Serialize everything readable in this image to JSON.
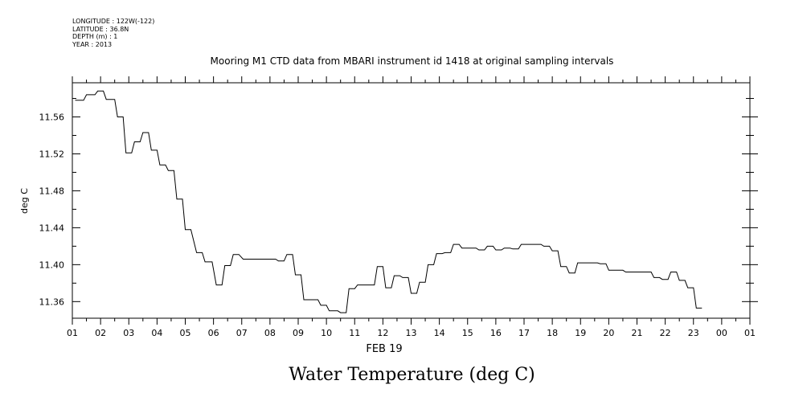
{
  "header": {
    "longitude": "LONGITUDE : 122W(-122)",
    "latitude": "LATITUDE : 36.8N",
    "depth": "DEPTH (m) : 1",
    "year": "YEAR : 2013"
  },
  "chart_data": {
    "type": "line",
    "title": "Water Temperature (deg C)",
    "subtitle": "Mooring M1 CTD data from MBARI instrument id 1418 at original sampling intervals",
    "ylabel": "deg C",
    "xlabel": "FEB 19",
    "ylim": [
      11.342,
      11.597
    ],
    "xlim": [
      1,
      25
    ],
    "y_ticks": [
      "11.56",
      "11.52",
      "11.48",
      "11.44",
      "11.40",
      "11.36"
    ],
    "y_tick_values": [
      11.56,
      11.52,
      11.48,
      11.44,
      11.4,
      11.36
    ],
    "x_ticks": [
      "01",
      "02",
      "03",
      "04",
      "05",
      "06",
      "07",
      "08",
      "09",
      "10",
      "11",
      "12",
      "13",
      "14",
      "15",
      "16",
      "17",
      "18",
      "19",
      "20",
      "21",
      "22",
      "23",
      "00",
      "01"
    ],
    "grid": false,
    "series": [
      {
        "values": [
          [
            1.1,
            11.578
          ],
          [
            1.4,
            11.578
          ],
          [
            1.5,
            11.584
          ],
          [
            1.8,
            11.584
          ],
          [
            1.9,
            11.588
          ],
          [
            2.1,
            11.588
          ],
          [
            2.2,
            11.579
          ],
          [
            2.5,
            11.579
          ],
          [
            2.6,
            11.56
          ],
          [
            2.8,
            11.56
          ],
          [
            2.9,
            11.521
          ],
          [
            3.1,
            11.521
          ],
          [
            3.2,
            11.533
          ],
          [
            3.4,
            11.533
          ],
          [
            3.5,
            11.543
          ],
          [
            3.7,
            11.543
          ],
          [
            3.8,
            11.524
          ],
          [
            4.0,
            11.524
          ],
          [
            4.1,
            11.508
          ],
          [
            4.3,
            11.508
          ],
          [
            4.4,
            11.502
          ],
          [
            4.6,
            11.502
          ],
          [
            4.7,
            11.471
          ],
          [
            4.9,
            11.471
          ],
          [
            5.0,
            11.438
          ],
          [
            5.2,
            11.438
          ],
          [
            5.4,
            11.413
          ],
          [
            5.6,
            11.413
          ],
          [
            5.7,
            11.403
          ],
          [
            5.95,
            11.403
          ],
          [
            6.1,
            11.378
          ],
          [
            6.3,
            11.378
          ],
          [
            6.4,
            11.399
          ],
          [
            6.6,
            11.399
          ],
          [
            6.7,
            11.411
          ],
          [
            6.9,
            11.411
          ],
          [
            7.05,
            11.406
          ],
          [
            8.2,
            11.406
          ],
          [
            8.3,
            11.404
          ],
          [
            8.5,
            11.404
          ],
          [
            8.6,
            11.411
          ],
          [
            8.8,
            11.411
          ],
          [
            8.9,
            11.389
          ],
          [
            9.1,
            11.389
          ],
          [
            9.2,
            11.362
          ],
          [
            9.7,
            11.362
          ],
          [
            9.8,
            11.356
          ],
          [
            10.0,
            11.356
          ],
          [
            10.1,
            11.35
          ],
          [
            10.4,
            11.35
          ],
          [
            10.5,
            11.348
          ],
          [
            10.7,
            11.348
          ],
          [
            10.8,
            11.374
          ],
          [
            11.0,
            11.374
          ],
          [
            11.1,
            11.378
          ],
          [
            11.7,
            11.378
          ],
          [
            11.8,
            11.398
          ],
          [
            12.0,
            11.398
          ],
          [
            12.1,
            11.375
          ],
          [
            12.3,
            11.375
          ],
          [
            12.4,
            11.388
          ],
          [
            12.6,
            11.388
          ],
          [
            12.7,
            11.386
          ],
          [
            12.9,
            11.386
          ],
          [
            13.0,
            11.369
          ],
          [
            13.2,
            11.369
          ],
          [
            13.3,
            11.381
          ],
          [
            13.5,
            11.381
          ],
          [
            13.6,
            11.4
          ],
          [
            13.8,
            11.4
          ],
          [
            13.9,
            11.412
          ],
          [
            14.1,
            11.412
          ],
          [
            14.2,
            11.413
          ],
          [
            14.4,
            11.413
          ],
          [
            14.5,
            11.422
          ],
          [
            14.7,
            11.422
          ],
          [
            14.8,
            11.418
          ],
          [
            15.3,
            11.418
          ],
          [
            15.4,
            11.416
          ],
          [
            15.6,
            11.416
          ],
          [
            15.7,
            11.42
          ],
          [
            15.9,
            11.42
          ],
          [
            16.0,
            11.416
          ],
          [
            16.2,
            11.416
          ],
          [
            16.3,
            11.418
          ],
          [
            16.5,
            11.418
          ],
          [
            16.6,
            11.417
          ],
          [
            16.8,
            11.417
          ],
          [
            16.9,
            11.422
          ],
          [
            17.6,
            11.422
          ],
          [
            17.7,
            11.42
          ],
          [
            17.9,
            11.42
          ],
          [
            18.0,
            11.415
          ],
          [
            18.2,
            11.415
          ],
          [
            18.3,
            11.398
          ],
          [
            18.5,
            11.398
          ],
          [
            18.6,
            11.391
          ],
          [
            18.8,
            11.391
          ],
          [
            18.9,
            11.402
          ],
          [
            19.6,
            11.402
          ],
          [
            19.7,
            11.401
          ],
          [
            19.9,
            11.401
          ],
          [
            20.0,
            11.394
          ],
          [
            20.5,
            11.394
          ],
          [
            20.6,
            11.392
          ],
          [
            21.5,
            11.392
          ],
          [
            21.6,
            11.386
          ],
          [
            21.8,
            11.386
          ],
          [
            21.9,
            11.384
          ],
          [
            22.1,
            11.384
          ],
          [
            22.2,
            11.392
          ],
          [
            22.4,
            11.392
          ],
          [
            22.5,
            11.383
          ],
          [
            22.7,
            11.383
          ],
          [
            22.8,
            11.375
          ],
          [
            23.0,
            11.375
          ],
          [
            23.1,
            11.353
          ],
          [
            23.3,
            11.353
          ]
        ]
      }
    ]
  }
}
